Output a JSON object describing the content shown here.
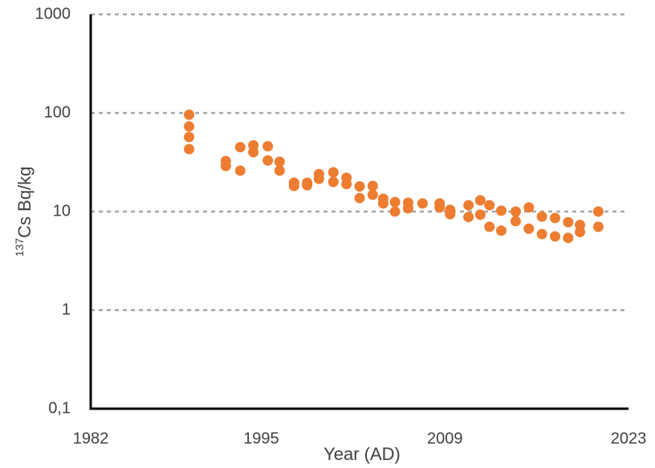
{
  "chart_data": {
    "type": "scatter",
    "x_label": "Year (AD)",
    "y_label_superscript": "137",
    "y_label": "Cs Bq/kg",
    "log_y": true,
    "grid": true,
    "color": "#ED7D31",
    "xlim": [
      1982,
      2023
    ],
    "xticks": [
      1982,
      1995,
      2009,
      2023
    ],
    "ylim": [
      0.1,
      1000
    ],
    "yticks": [
      {
        "value": 0.1,
        "label": "0,1"
      },
      1,
      10,
      100,
      1000
    ],
    "x": [
      1989.5,
      1989.5,
      1989.5,
      1989.5,
      1992.3,
      1992.3,
      1993.4,
      1993.4,
      1994.4,
      1994.4,
      1995.5,
      1995.5,
      1996.4,
      1996.4,
      1997.5,
      1997.5,
      1998.5,
      1998.5,
      1999.4,
      1999.4,
      2000.5,
      2000.5,
      2001.5,
      2001.5,
      2002.5,
      2002.5,
      2003.5,
      2003.5,
      2004.3,
      2004.3,
      2005.2,
      2005.2,
      2006.2,
      2006.2,
      2007.3,
      2008.6,
      2008.6,
      2009.4,
      2009.4,
      2010.8,
      2010.8,
      2011.7,
      2011.7,
      2012.4,
      2012.4,
      2013.3,
      2013.3,
      2014.4,
      2014.4,
      2015.4,
      2015.4,
      2016.4,
      2016.4,
      2017.4,
      2017.4,
      2018.4,
      2018.4,
      2019.3,
      2019.3,
      2020.7,
      2020.7
    ],
    "values": [
      96,
      73,
      57,
      43,
      32.5,
      29,
      45,
      26,
      47,
      40,
      46,
      33,
      32,
      26,
      19.6,
      18.2,
      19.6,
      18.5,
      24,
      21.5,
      25,
      20,
      22,
      19,
      18,
      13.7,
      18.2,
      14.8,
      13.5,
      12.1,
      12.5,
      10,
      12.3,
      10.8,
      12.1,
      12.1,
      11,
      10.4,
      9.4,
      11.6,
      8.8,
      13,
      9.3,
      11.6,
      7,
      10.2,
      6.4,
      10,
      8,
      11,
      6.7,
      8.9,
      5.9,
      8.6,
      5.6,
      7.8,
      5.4,
      7.3,
      6.2,
      10,
      7
    ]
  }
}
